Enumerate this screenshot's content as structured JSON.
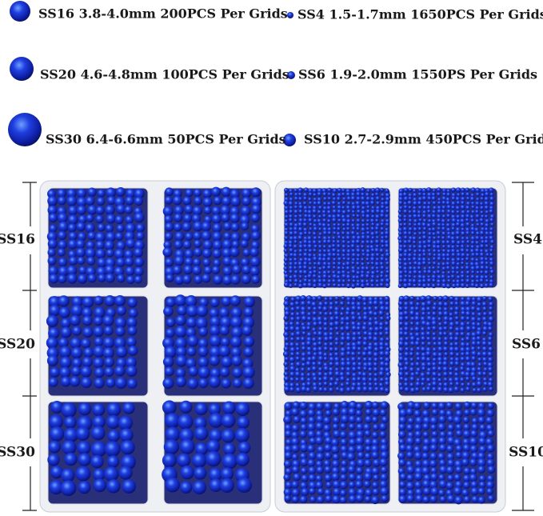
{
  "legend": [
    "SS16 3.8-4.0mm 200PCS Per Grids",
    "SS4 1.5-1.7mm 1650PCS Per Grids",
    "SS20 4.6-4.8mm 100PCS Per Grids",
    "SS6 1.9-2.0mm 1550PS Per Grids",
    "SS30 6.4-6.6mm 50PCS Per Grids",
    "SS10 2.7-2.9mm 450PCS Per Grids"
  ],
  "left_scale": [
    "SS16",
    "SS20",
    "SS30"
  ],
  "right_scale": [
    "SS4",
    "SS6",
    "SS10"
  ]
}
